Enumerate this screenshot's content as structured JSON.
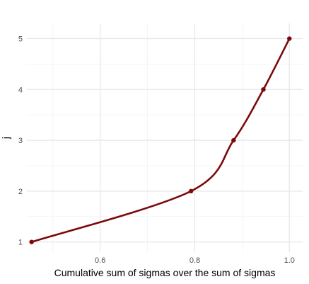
{
  "chart_data": {
    "type": "line",
    "title": "",
    "xlabel": "Cumulative sum of sigmas over the sum of sigmas",
    "ylabel": "j",
    "xlim": [
      0.445,
      1.028
    ],
    "ylim": [
      0.8,
      5.3
    ],
    "x_ticks": [
      0.6,
      0.8,
      1.0
    ],
    "x_tick_labels": [
      "0.6",
      "0.8",
      "1.0"
    ],
    "y_ticks": [
      1,
      2,
      3,
      4,
      5
    ],
    "y_tick_labels": [
      "1",
      "2",
      "3",
      "4",
      "5"
    ],
    "grid": true,
    "series": [
      {
        "color": "#7a0a0a",
        "curve": "smooth",
        "points": [
          {
            "x": 0.455,
            "y": 1
          },
          {
            "x": 0.792,
            "y": 2
          },
          {
            "x": 0.882,
            "y": 3
          },
          {
            "x": 0.945,
            "y": 4
          },
          {
            "x": 1.0,
            "y": 5
          }
        ]
      }
    ]
  }
}
